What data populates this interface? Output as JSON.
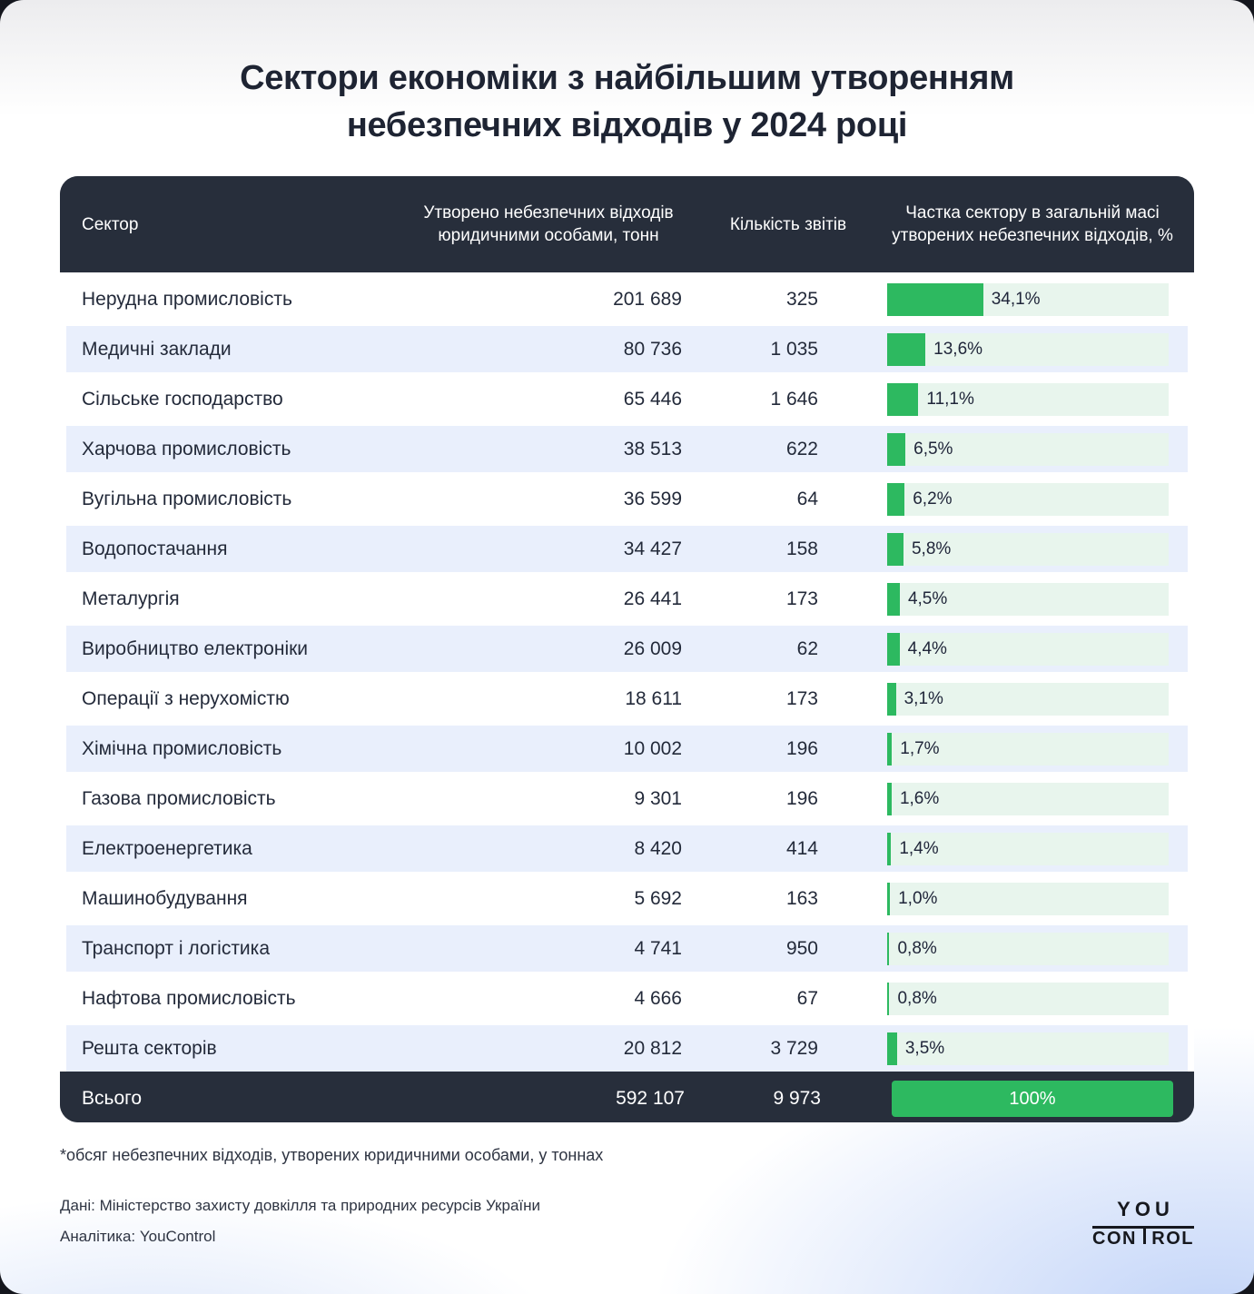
{
  "title": "Сектори економіки з найбільшим утворенням небезпечних відходів у 2024 році",
  "table": {
    "headers": {
      "sector": "Сектор",
      "waste": "Утворено небезпечних відходів юридичними особами, тонн",
      "reports": "Кількість звітів",
      "share": "Частка сектору в загальній масі утворених небезпечних відходів, %"
    },
    "rows": [
      {
        "sector": "Нерудна промисловість",
        "waste": "201 689",
        "reports": "325",
        "share_label": "34,1%",
        "share_pct": 34.1
      },
      {
        "sector": "Медичні заклади",
        "waste": "80 736",
        "reports": "1 035",
        "share_label": "13,6%",
        "share_pct": 13.6
      },
      {
        "sector": "Сільське господарство",
        "waste": "65 446",
        "reports": "1 646",
        "share_label": "11,1%",
        "share_pct": 11.1
      },
      {
        "sector": "Харчова промисловість",
        "waste": "38 513",
        "reports": "622",
        "share_label": "6,5%",
        "share_pct": 6.5
      },
      {
        "sector": "Вугільна промисловість",
        "waste": "36 599",
        "reports": "64",
        "share_label": "6,2%",
        "share_pct": 6.2
      },
      {
        "sector": "Водопостачання",
        "waste": "34 427",
        "reports": "158",
        "share_label": "5,8%",
        "share_pct": 5.8
      },
      {
        "sector": "Металургія",
        "waste": "26 441",
        "reports": "173",
        "share_label": "4,5%",
        "share_pct": 4.5
      },
      {
        "sector": "Виробництво електроніки",
        "waste": "26 009",
        "reports": "62",
        "share_label": "4,4%",
        "share_pct": 4.4
      },
      {
        "sector": "Операції з нерухомістю",
        "waste": "18 611",
        "reports": "173",
        "share_label": "3,1%",
        "share_pct": 3.1
      },
      {
        "sector": "Хімічна промисловість",
        "waste": "10 002",
        "reports": "196",
        "share_label": "1,7%",
        "share_pct": 1.7
      },
      {
        "sector": "Газова промисловість",
        "waste": "9 301",
        "reports": "196",
        "share_label": "1,6%",
        "share_pct": 1.6
      },
      {
        "sector": "Електроенергетика",
        "waste": "8 420",
        "reports": "414",
        "share_label": "1,4%",
        "share_pct": 1.4
      },
      {
        "sector": "Машинобудування",
        "waste": "5 692",
        "reports": "163",
        "share_label": "1,0%",
        "share_pct": 1.0
      },
      {
        "sector": "Транспорт і логістика",
        "waste": "4 741",
        "reports": "950",
        "share_label": "0,8%",
        "share_pct": 0.8
      },
      {
        "sector": "Нафтова промисловість",
        "waste": "4 666",
        "reports": "67",
        "share_label": "0,8%",
        "share_pct": 0.8
      },
      {
        "sector": "Решта секторів",
        "waste": "20 812",
        "reports": "3 729",
        "share_label": "3,5%",
        "share_pct": 3.5
      }
    ],
    "total": {
      "sector": "Всього",
      "waste": "592 107",
      "reports": "9 973",
      "share_label": "100%",
      "share_pct": 100
    }
  },
  "footnote": "*обсяг небезпечних відходів, утворених юридичними особами, у тоннах",
  "source_line": "Дані: Міністерство захисту довкілля та природних ресурсів України",
  "analytics_line": "Аналітика: YouControl",
  "logo": {
    "top": "YOU",
    "bottom_left": "CON",
    "bottom_right": "ROL"
  },
  "colors": {
    "accent_green": "#2db960",
    "bar_track_green": "#e8f5ed",
    "dark_header": "#272e3b",
    "row_alt_blue": "#e9effc",
    "text_navy": "#232a3a",
    "page_bottom_blue": "#c2d4f8"
  },
  "chart_data": {
    "type": "table",
    "title": "Сектори економіки з найбільшим утворенням небезпечних відходів у 2024 році",
    "columns": [
      "Сектор",
      "Утворено небезпечних відходів юридичними особами, тонн",
      "Кількість звітів",
      "Частка сектору в загальній масі утворених небезпечних відходів, %"
    ],
    "categories": [
      "Нерудна промисловість",
      "Медичні заклади",
      "Сільське господарство",
      "Харчова промисловість",
      "Вугільна промисловість",
      "Водопостачання",
      "Металургія",
      "Виробництво електроніки",
      "Операції з нерухомістю",
      "Хімічна промисловість",
      "Газова промисловість",
      "Електроенергетика",
      "Машинобудування",
      "Транспорт і логістика",
      "Нафтова промисловість",
      "Решта секторів"
    ],
    "series": [
      {
        "name": "Утворено небезпечних відходів, тонн",
        "values": [
          201689,
          80736,
          65446,
          38513,
          36599,
          34427,
          26441,
          26009,
          18611,
          10002,
          9301,
          8420,
          5692,
          4741,
          4666,
          20812
        ]
      },
      {
        "name": "Кількість звітів",
        "values": [
          325,
          1035,
          1646,
          622,
          64,
          158,
          173,
          62,
          173,
          196,
          196,
          414,
          163,
          950,
          67,
          3729
        ]
      },
      {
        "name": "Частка сектору, % (bar)",
        "values": [
          34.1,
          13.6,
          11.1,
          6.5,
          6.2,
          5.8,
          4.5,
          4.4,
          3.1,
          1.7,
          1.6,
          1.4,
          1.0,
          0.8,
          0.8,
          3.5
        ]
      }
    ],
    "totals": {
      "Утворено небезпечних відходів, тонн": 592107,
      "Кількість звітів": 9973,
      "Частка сектору, %": 100
    },
    "layout_hints": {
      "share_column_rendered_as": "bar",
      "bar_range": [
        0,
        100
      ],
      "bar_color": "#2db960",
      "grid": "off",
      "legend": "none"
    }
  }
}
